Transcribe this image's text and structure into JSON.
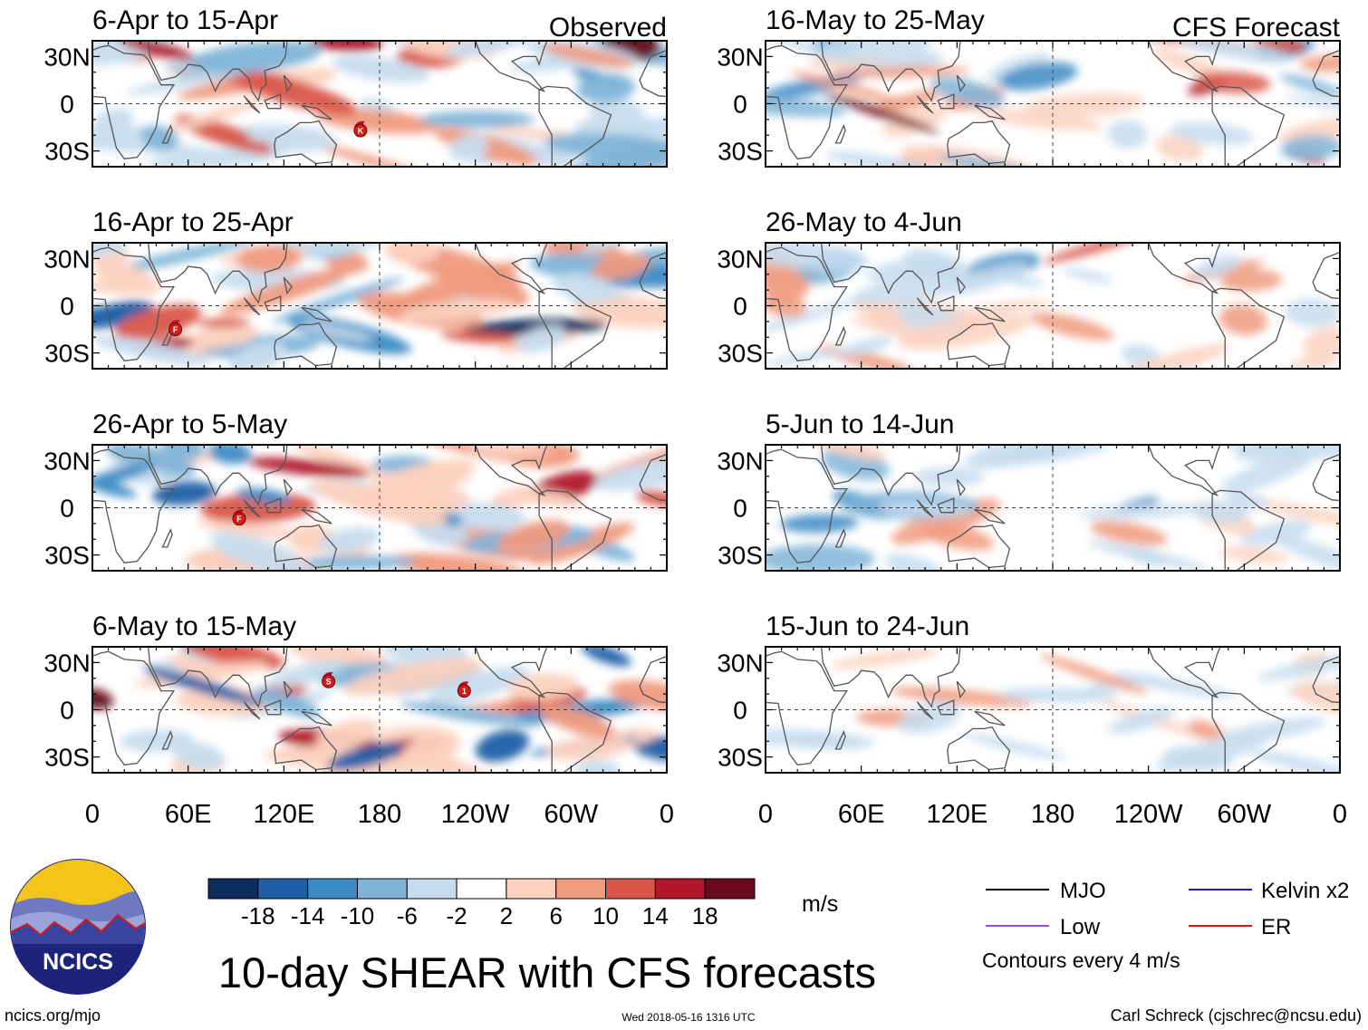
{
  "chart_data": {
    "type": "heatmap",
    "title": "10-day SHEAR with CFS forecasts",
    "unit_label": "m/s",
    "observed_label": "Observed",
    "forecast_label": "CFS Forecast",
    "x_ticks": [
      "0",
      "60E",
      "120E",
      "180",
      "120W",
      "60W",
      "0"
    ],
    "y_ticks": [
      "30N",
      "0",
      "30S"
    ],
    "panels": [
      {
        "period": "6-Apr to 15-Apr",
        "type": "observed",
        "storms": [
          {
            "label": "K",
            "lon": 168,
            "lat": -17
          }
        ]
      },
      {
        "period": "16-Apr to 25-Apr",
        "type": "observed",
        "storms": [
          {
            "label": "F",
            "lon": 52,
            "lat": -15
          }
        ]
      },
      {
        "period": "26-Apr to 5-May",
        "type": "observed",
        "storms": [
          {
            "label": "F",
            "lon": 92,
            "lat": -7
          }
        ]
      },
      {
        "period": "6-May to 15-May",
        "type": "observed",
        "storms": [
          {
            "label": "S",
            "lon": 148,
            "lat": 18
          },
          {
            "label": "1",
            "lon": 233,
            "lat": 12
          }
        ]
      },
      {
        "period": "16-May to 25-May",
        "type": "forecast",
        "storms": []
      },
      {
        "period": "26-May to 4-Jun",
        "type": "forecast",
        "storms": []
      },
      {
        "period": "5-Jun to 14-Jun",
        "type": "forecast",
        "storms": []
      },
      {
        "period": "15-Jun to 24-Jun",
        "type": "forecast",
        "storms": []
      }
    ],
    "colorbar": {
      "tick_labels": [
        "-18",
        "-14",
        "-10",
        "-6",
        "-2",
        "2",
        "6",
        "10",
        "14",
        "18"
      ],
      "colors": [
        "#0b2e5e",
        "#1f5fa8",
        "#3d8bc4",
        "#7fb4d8",
        "#c6dcee",
        "#ffffff",
        "#fcd1bf",
        "#f09a7e",
        "#d9574a",
        "#b1182b",
        "#6b0a1e"
      ]
    },
    "legend": [
      {
        "label": "MJO",
        "color": "#000000"
      },
      {
        "label": "Kelvin x2",
        "color": "#1a1acc"
      },
      {
        "label": "Low",
        "color": "#9b4fd8"
      },
      {
        "label": "ER",
        "color": "#d61a1a"
      }
    ],
    "contour_note": "Contours every 4 m/s"
  },
  "footer": {
    "logo_text": "NCICS",
    "url": "ncics.org/mjo",
    "timestamp": "Wed 2018-05-16 1316 UTC",
    "credit": "Carl Schreck (cjschrec@ncsu.edu)"
  }
}
